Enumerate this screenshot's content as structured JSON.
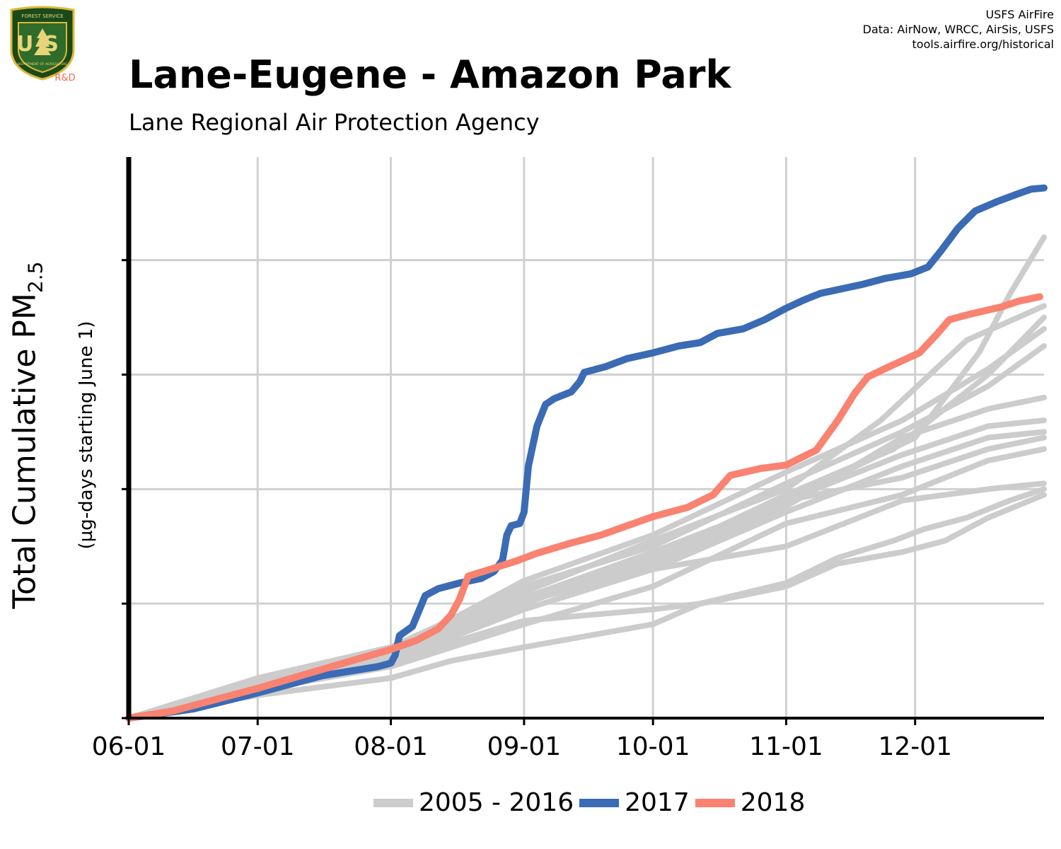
{
  "header": {
    "title": "Lane-Eugene - Amazon Park",
    "subtitle": "Lane Regional Air Protection Agency",
    "credits": [
      "USFS AirFire",
      "Data: AirNow, WRCC, AirSis, USFS",
      "tools.airfire.org/historical"
    ],
    "logo": {
      "top_text": "FOREST SERVICE",
      "mark": "US",
      "bottom_text": "DEPARTMENT OF AGRICULTURE",
      "badge": "R&D"
    }
  },
  "chart_data": {
    "type": "line",
    "title": "Lane-Eugene - Amazon Park",
    "subtitle": "Lane Regional Air Protection Agency",
    "ylabel_main": "Total Cumulative PM",
    "ylabel_sub": "2.5",
    "ylabel_units": "(µg-days starting June 1)",
    "x_range_days": [
      0,
      213
    ],
    "y_range_rel": [
      0,
      4.9
    ],
    "x_ticks": [
      {
        "label": "06-01",
        "day": 0
      },
      {
        "label": "07-01",
        "day": 30
      },
      {
        "label": "08-01",
        "day": 61
      },
      {
        "label": "09-01",
        "day": 92
      },
      {
        "label": "10-01",
        "day": 122
      },
      {
        "label": "11-01",
        "day": 153
      },
      {
        "label": "12-01",
        "day": 183
      }
    ],
    "y_ticks": [
      0,
      1,
      2,
      3,
      4
    ],
    "y_tick_labels_shown": false,
    "grid": true,
    "legend_position": "bottom",
    "series": [
      {
        "name": "2017",
        "color": "#3a6bb4",
        "points": [
          [
            0,
            0
          ],
          [
            15,
            0.08
          ],
          [
            30,
            0.22
          ],
          [
            45,
            0.37
          ],
          [
            58,
            0.45
          ],
          [
            61,
            0.48
          ],
          [
            62,
            0.55
          ],
          [
            63,
            0.72
          ],
          [
            66,
            0.8
          ],
          [
            69,
            1.07
          ],
          [
            72,
            1.13
          ],
          [
            77,
            1.18
          ],
          [
            82,
            1.22
          ],
          [
            85,
            1.28
          ],
          [
            87,
            1.38
          ],
          [
            88,
            1.6
          ],
          [
            89,
            1.68
          ],
          [
            91,
            1.7
          ],
          [
            92,
            1.8
          ],
          [
            93,
            2.2
          ],
          [
            95,
            2.55
          ],
          [
            97,
            2.74
          ],
          [
            99,
            2.79
          ],
          [
            103,
            2.85
          ],
          [
            105,
            2.94
          ],
          [
            106,
            3.02
          ],
          [
            111,
            3.07
          ],
          [
            116,
            3.14
          ],
          [
            122,
            3.19
          ],
          [
            128,
            3.25
          ],
          [
            133,
            3.28
          ],
          [
            137,
            3.36
          ],
          [
            143,
            3.4
          ],
          [
            148,
            3.48
          ],
          [
            153,
            3.58
          ],
          [
            157,
            3.65
          ],
          [
            161,
            3.71
          ],
          [
            166,
            3.75
          ],
          [
            171,
            3.79
          ],
          [
            176,
            3.84
          ],
          [
            182,
            3.88
          ],
          [
            186,
            3.94
          ],
          [
            189,
            4.08
          ],
          [
            193,
            4.28
          ],
          [
            197,
            4.43
          ],
          [
            202,
            4.51
          ],
          [
            207,
            4.58
          ],
          [
            210,
            4.62
          ],
          [
            213,
            4.63
          ]
        ]
      },
      {
        "name": "2018",
        "color": "#f98270",
        "points": [
          [
            0,
            0
          ],
          [
            10,
            0.06
          ],
          [
            20,
            0.16
          ],
          [
            30,
            0.26
          ],
          [
            40,
            0.37
          ],
          [
            50,
            0.48
          ],
          [
            61,
            0.6
          ],
          [
            67,
            0.68
          ],
          [
            72,
            0.78
          ],
          [
            75,
            0.9
          ],
          [
            77,
            1.04
          ],
          [
            79,
            1.24
          ],
          [
            85,
            1.31
          ],
          [
            90,
            1.37
          ],
          [
            95,
            1.44
          ],
          [
            103,
            1.53
          ],
          [
            110,
            1.6
          ],
          [
            116,
            1.68
          ],
          [
            122,
            1.76
          ],
          [
            130,
            1.84
          ],
          [
            136,
            1.95
          ],
          [
            140,
            2.12
          ],
          [
            147,
            2.18
          ],
          [
            153,
            2.21
          ],
          [
            160,
            2.34
          ],
          [
            165,
            2.6
          ],
          [
            169,
            2.84
          ],
          [
            172,
            2.98
          ],
          [
            177,
            3.07
          ],
          [
            184,
            3.19
          ],
          [
            188,
            3.35
          ],
          [
            191,
            3.48
          ],
          [
            196,
            3.53
          ],
          [
            203,
            3.59
          ],
          [
            207,
            3.64
          ],
          [
            212,
            3.68
          ]
        ]
      },
      {
        "name": "2005 - 2016",
        "color": "#cccccc",
        "group": "historical",
        "points": [
          [
            0,
            0
          ],
          [
            30,
            0.3
          ],
          [
            61,
            0.55
          ],
          [
            92,
            1.05
          ],
          [
            122,
            1.45
          ],
          [
            153,
            1.9
          ],
          [
            183,
            2.45
          ],
          [
            198,
            3.2
          ],
          [
            205,
            3.7
          ],
          [
            213,
            4.2
          ]
        ]
      },
      {
        "name": "2005 - 2016",
        "color": "#cccccc",
        "group": "historical",
        "points": [
          [
            0,
            0
          ],
          [
            30,
            0.28
          ],
          [
            61,
            0.6
          ],
          [
            92,
            1.1
          ],
          [
            122,
            1.55
          ],
          [
            153,
            2.0
          ],
          [
            175,
            2.6
          ],
          [
            195,
            3.3
          ],
          [
            213,
            3.6
          ]
        ]
      },
      {
        "name": "2005 - 2016",
        "color": "#cccccc",
        "group": "historical",
        "points": [
          [
            0,
            0
          ],
          [
            30,
            0.25
          ],
          [
            61,
            0.52
          ],
          [
            92,
            1.0
          ],
          [
            122,
            1.4
          ],
          [
            153,
            1.95
          ],
          [
            178,
            2.35
          ],
          [
            200,
            3.0
          ],
          [
            213,
            3.5
          ]
        ]
      },
      {
        "name": "2005 - 2016",
        "color": "#cccccc",
        "group": "historical",
        "points": [
          [
            0,
            0
          ],
          [
            30,
            0.3
          ],
          [
            61,
            0.58
          ],
          [
            92,
            1.2
          ],
          [
            122,
            1.6
          ],
          [
            153,
            2.15
          ],
          [
            180,
            2.6
          ],
          [
            200,
            3.05
          ],
          [
            213,
            3.4
          ]
        ]
      },
      {
        "name": "2005 - 2016",
        "color": "#cccccc",
        "group": "historical",
        "points": [
          [
            0,
            0
          ],
          [
            30,
            0.35
          ],
          [
            61,
            0.62
          ],
          [
            92,
            1.15
          ],
          [
            122,
            1.5
          ],
          [
            153,
            2.05
          ],
          [
            180,
            2.5
          ],
          [
            200,
            2.9
          ],
          [
            213,
            3.25
          ]
        ]
      },
      {
        "name": "2005 - 2016",
        "color": "#cccccc",
        "group": "historical",
        "points": [
          [
            0,
            0
          ],
          [
            30,
            0.3
          ],
          [
            61,
            0.55
          ],
          [
            92,
            1.05
          ],
          [
            122,
            1.35
          ],
          [
            153,
            1.85
          ],
          [
            180,
            2.45
          ],
          [
            200,
            2.7
          ],
          [
            213,
            2.8
          ]
        ]
      },
      {
        "name": "2005 - 2016",
        "color": "#cccccc",
        "group": "historical",
        "points": [
          [
            0,
            0
          ],
          [
            30,
            0.28
          ],
          [
            61,
            0.5
          ],
          [
            92,
            0.95
          ],
          [
            122,
            1.3
          ],
          [
            153,
            1.8
          ],
          [
            180,
            2.2
          ],
          [
            200,
            2.45
          ],
          [
            213,
            2.5
          ]
        ]
      },
      {
        "name": "2005 - 2016",
        "color": "#cccccc",
        "group": "historical",
        "points": [
          [
            0,
            0
          ],
          [
            30,
            0.3
          ],
          [
            61,
            0.55
          ],
          [
            92,
            1.05
          ],
          [
            122,
            1.4
          ],
          [
            153,
            1.9
          ],
          [
            180,
            2.3
          ],
          [
            200,
            2.55
          ],
          [
            213,
            2.6
          ]
        ]
      },
      {
        "name": "2005 - 2016",
        "color": "#cccccc",
        "group": "historical",
        "points": [
          [
            0,
            0
          ],
          [
            30,
            0.3
          ],
          [
            61,
            0.5
          ],
          [
            92,
            1.0
          ],
          [
            122,
            1.4
          ],
          [
            153,
            1.9
          ],
          [
            180,
            2.1
          ],
          [
            200,
            2.35
          ],
          [
            213,
            2.45
          ]
        ]
      },
      {
        "name": "2005 - 2016",
        "color": "#cccccc",
        "group": "historical",
        "points": [
          [
            0,
            0
          ],
          [
            30,
            0.25
          ],
          [
            61,
            0.45
          ],
          [
            92,
            0.82
          ],
          [
            122,
            1.15
          ],
          [
            153,
            1.7
          ],
          [
            180,
            1.95
          ],
          [
            190,
            2.1
          ],
          [
            200,
            2.25
          ],
          [
            213,
            2.35
          ]
        ]
      },
      {
        "name": "2005 - 2016",
        "color": "#cccccc",
        "group": "historical",
        "points": [
          [
            0,
            0
          ],
          [
            30,
            0.32
          ],
          [
            61,
            0.58
          ],
          [
            92,
            1.02
          ],
          [
            122,
            1.3
          ],
          [
            153,
            1.5
          ],
          [
            180,
            1.9
          ],
          [
            200,
            2.0
          ],
          [
            213,
            2.05
          ]
        ]
      },
      {
        "name": "2005 - 2016",
        "color": "#cccccc",
        "group": "historical",
        "points": [
          [
            0,
            0
          ],
          [
            30,
            0.3
          ],
          [
            61,
            0.5
          ],
          [
            92,
            0.85
          ],
          [
            122,
            0.95
          ],
          [
            133,
            1.0
          ],
          [
            140,
            1.05
          ],
          [
            153,
            1.15
          ],
          [
            165,
            1.35
          ],
          [
            180,
            1.45
          ],
          [
            190,
            1.55
          ],
          [
            200,
            1.75
          ],
          [
            213,
            1.95
          ]
        ]
      },
      {
        "name": "2005 - 2016",
        "color": "#cccccc",
        "group": "historical",
        "points": [
          [
            0,
            0
          ],
          [
            30,
            0.2
          ],
          [
            61,
            0.35
          ],
          [
            75,
            0.5
          ],
          [
            92,
            0.62
          ],
          [
            122,
            0.82
          ],
          [
            133,
            1.0
          ],
          [
            153,
            1.18
          ],
          [
            165,
            1.4
          ],
          [
            178,
            1.55
          ],
          [
            185,
            1.65
          ],
          [
            195,
            1.75
          ],
          [
            205,
            1.9
          ],
          [
            213,
            2.0
          ]
        ]
      }
    ],
    "legend": [
      {
        "label": "2005 - 2016",
        "color": "#cccccc"
      },
      {
        "label": "2017",
        "color": "#3a6bb4"
      },
      {
        "label": "2018",
        "color": "#f98270"
      }
    ]
  }
}
